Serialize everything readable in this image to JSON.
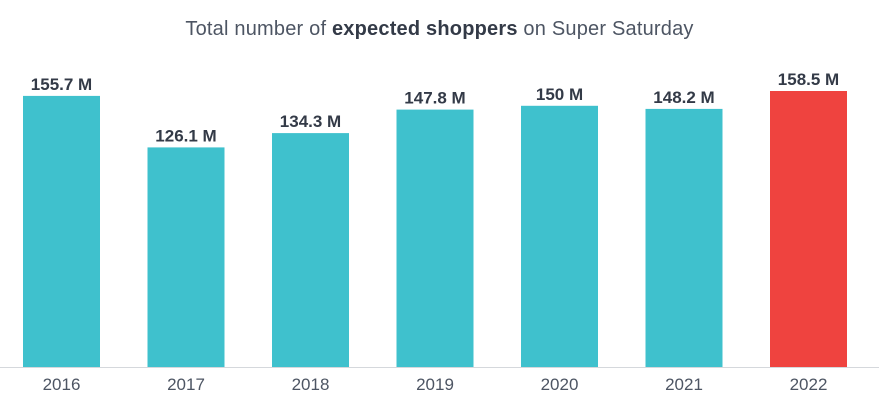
{
  "chart_data": {
    "type": "bar",
    "title_prefix": "Total number of ",
    "title_bold": "expected shoppers",
    "title_suffix": " on Super Saturday",
    "categories": [
      "2016",
      "2017",
      "2018",
      "2019",
      "2020",
      "2021",
      "2022"
    ],
    "values": [
      155.7,
      126.1,
      134.3,
      147.8,
      150,
      148.2,
      158.5
    ],
    "value_labels": [
      "155.7 M",
      "126.1 M",
      "134.3 M",
      "147.8 M",
      "150 M",
      "148.2 M",
      "158.5 M"
    ],
    "unit": "M",
    "ylim": [
      0,
      158.5
    ],
    "grid": false,
    "colors": {
      "default_bar": "#3fc1cd",
      "highlight_bar": "#ef433f",
      "label_text": "#333a47",
      "tick_text": "#4d5563",
      "axis_line": "#d5d8dc"
    },
    "highlight_index": 6
  }
}
